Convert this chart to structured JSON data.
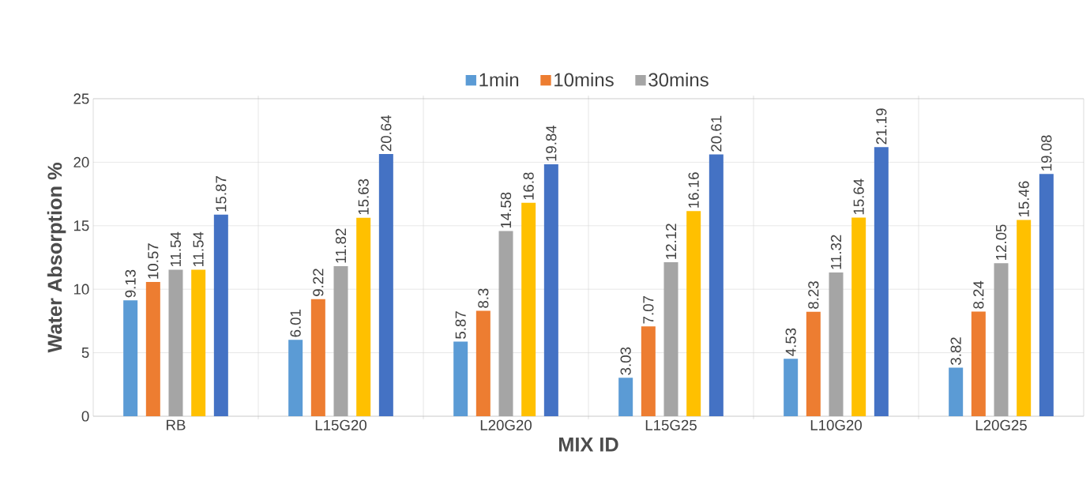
{
  "chart_data": {
    "type": "bar",
    "xlabel": "MIX ID",
    "ylabel": "Water Absorption %",
    "categories": [
      "RB",
      "L15G20",
      "L20G20",
      "L15G25",
      "L10G20",
      "L20G25"
    ],
    "series": [
      {
        "name": "1min",
        "color": "#5b9bd5",
        "values": [
          9.13,
          6.01,
          5.87,
          3.03,
          4.53,
          3.82
        ]
      },
      {
        "name": "10mins",
        "color": "#ed7d31",
        "values": [
          10.57,
          9.22,
          8.3,
          7.07,
          8.23,
          8.24
        ]
      },
      {
        "name": "30mins",
        "color": "#a5a5a5",
        "values": [
          11.54,
          11.82,
          14.58,
          12.12,
          11.32,
          12.05
        ]
      },
      {
        "color": "#ffc000",
        "values": [
          11.54,
          15.63,
          16.8,
          16.16,
          15.64,
          15.46
        ]
      },
      {
        "color": "#4472c4",
        "values": [
          15.87,
          20.64,
          19.84,
          20.61,
          21.19,
          19.08
        ]
      }
    ],
    "ylim": [
      0,
      25
    ],
    "yticks": [
      0,
      5,
      10,
      15,
      20,
      25
    ],
    "grid": true,
    "legend": "top",
    "data_labels": true
  }
}
